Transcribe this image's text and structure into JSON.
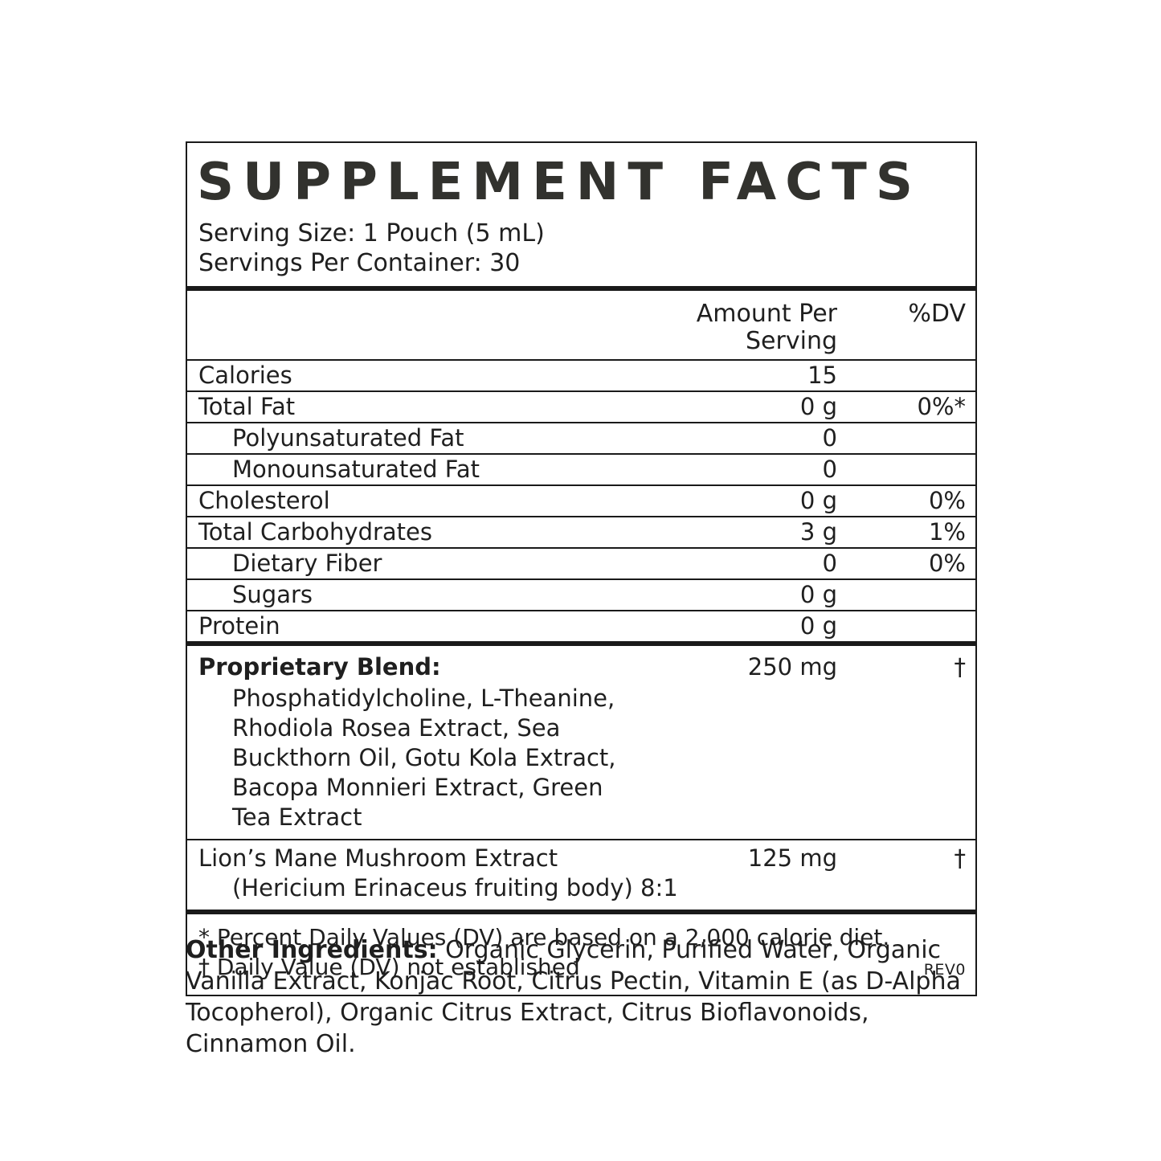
{
  "facts": {
    "title": "SUPPLEMENT FACTS",
    "serving_size": "Serving Size: 1 Pouch (5 mL)",
    "servings_per_container": "Servings Per Container: 30",
    "columns": {
      "amount": "Amount Per Serving",
      "dv": "%DV"
    },
    "nutrients": [
      {
        "name": "Calories",
        "amount": "15",
        "dv": ""
      },
      {
        "name": "Total Fat",
        "amount": "0 g",
        "dv": "0%*"
      },
      {
        "name": "Polyunsaturated Fat",
        "amount": "0",
        "dv": ""
      },
      {
        "name": "Monounsaturated Fat",
        "amount": "0",
        "dv": ""
      },
      {
        "name": "Cholesterol",
        "amount": "0 g",
        "dv": "0%"
      },
      {
        "name": "Total Carbohydrates",
        "amount": "3 g",
        "dv": "1%"
      },
      {
        "name": "Dietary Fiber",
        "amount": "0",
        "dv": "0%"
      },
      {
        "name": "Sugars",
        "amount": "0 g",
        "dv": ""
      },
      {
        "name": "Protein",
        "amount": "0 g",
        "dv": ""
      }
    ],
    "proprietary_blend": {
      "name": "Proprietary Blend:",
      "amount": "250 mg",
      "dv": "†",
      "description": "Phosphatidylcholine, L-Theanine,\nRhodiola Rosea Extract, Sea\nBuckthorn Oil, Gotu Kola Extract,\nBacopa Monnieri Extract, Green\nTea Extract"
    },
    "lions_mane": {
      "name": "Lion’s Mane Mushroom Extract",
      "sub": "(Hericium Erinaceus fruiting body) 8:1",
      "amount": "125 mg",
      "dv": "†"
    },
    "footnote_1": "* Percent Daily Values (DV) are based on a 2,000 calorie diet.",
    "footnote_2": "† Daily Value (DV) not established",
    "rev": "REV0"
  },
  "other_ingredients": {
    "label": "Other Ingredients:",
    "text": " Organic Glycerin, Purified Water, Organic Vanilla Extract, Konjac Root, Citrus Pectin, Vitamin E (as D-Alpha Tocopherol), Organic Citrus Extract, Citrus Bioflavonoids, Cinnamon Oil."
  }
}
